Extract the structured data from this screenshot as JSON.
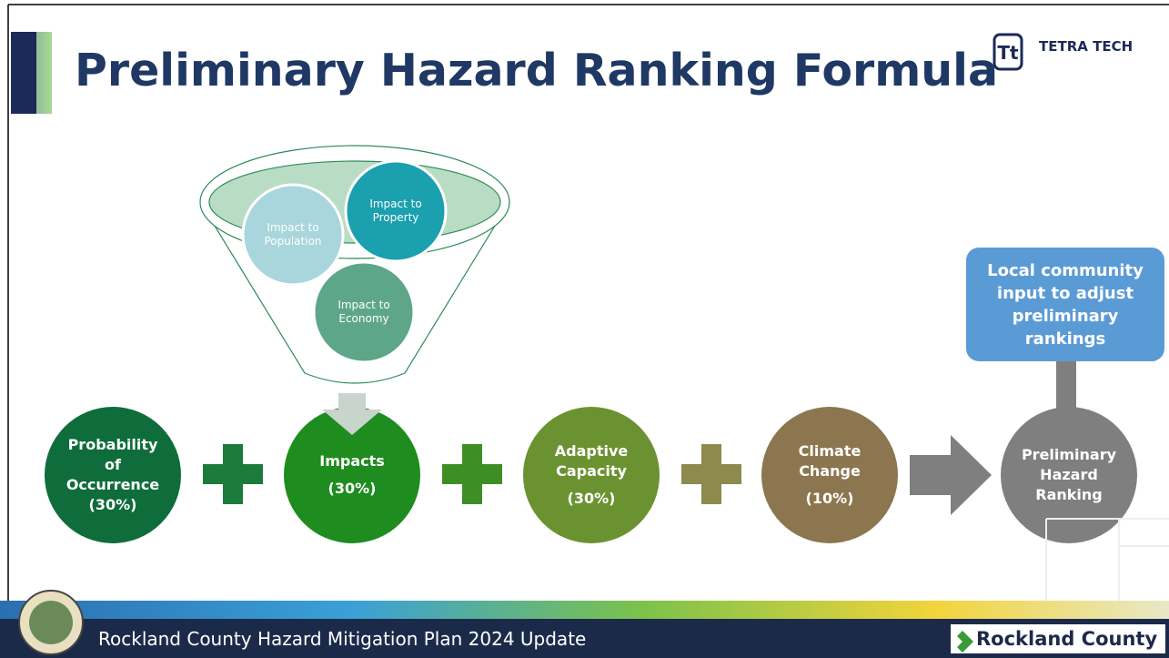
{
  "title": "Preliminary Hazard Ranking Formula",
  "logo": "TETRA TECH",
  "funnel": [
    "Impact to Population",
    "Impact to Property",
    "Impact to Economy"
  ],
  "factors": [
    {
      "name": "Probability of Occurrence",
      "weight": "(30%)"
    },
    {
      "name": "Impacts",
      "weight": "(30%)"
    },
    {
      "name": "Adaptive Capacity",
      "weight": "(30%)"
    },
    {
      "name": "Climate Change",
      "weight": "(10%)"
    },
    {
      "name": "Preliminary Hazard Ranking"
    }
  ],
  "callout": "Local community input to adjust preliminary rankings",
  "footer": {
    "text": "Rockland County Hazard Mitigation Plan 2024 Update",
    "brand": "Rockland County"
  }
}
